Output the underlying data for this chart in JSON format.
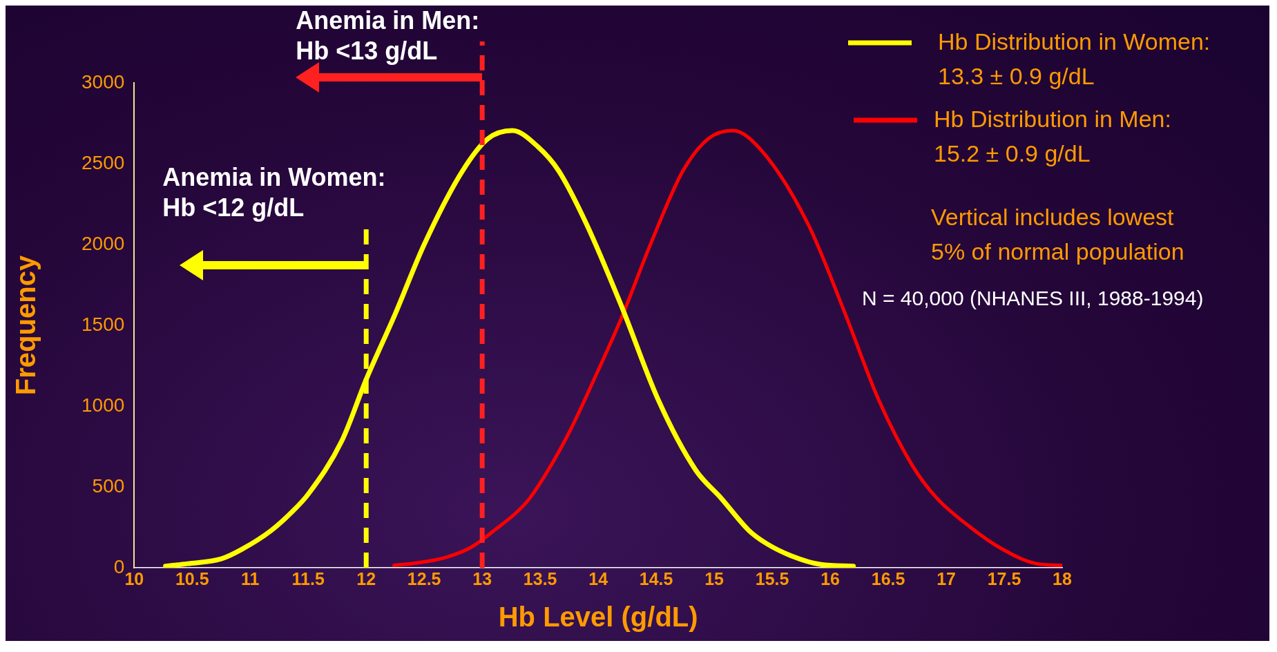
{
  "chart_data": {
    "type": "line",
    "xlabel": "Hb Level (g/dL)",
    "ylabel": "Frequency",
    "x": [
      10.27,
      10.46,
      10.75,
      10.93,
      11.18,
      11.36,
      11.5,
      11.79,
      12.0,
      12.25,
      12.5,
      12.83,
      13.05,
      13.26,
      13.48,
      13.66,
      13.9,
      14.2,
      14.52,
      14.84,
      15.06,
      15.3,
      15.45,
      15.66,
      15.92,
      16.2
    ],
    "series": [
      {
        "name": "Hb Distribution in Women:\n13.3 ± 0.9 g/dL",
        "color": "#ffff00",
        "values": [
          10,
          25,
          55,
          115,
          230,
          345,
          455,
          785,
          1165,
          1570,
          2000,
          2455,
          2655,
          2705,
          2605,
          2455,
          2125,
          1620,
          1035,
          605,
          430,
          230,
          150,
          75,
          20,
          10
        ]
      },
      {
        "name": "Hb Distribution in Men:\n15.2 ± 0.9 g/dL",
        "color": "#ff0000",
        "x": [
          12.24,
          12.44,
          12.69,
          12.9,
          13.12,
          13.3,
          13.41,
          13.73,
          13.98,
          14.2,
          14.45,
          14.73,
          14.95,
          15.16,
          15.41,
          15.81,
          16.13,
          16.42,
          16.71,
          16.92,
          17.21,
          17.46,
          17.78,
          18.0
        ],
        "values": [
          15,
          30,
          65,
          125,
          240,
          345,
          430,
          810,
          1190,
          1545,
          2000,
          2455,
          2655,
          2705,
          2580,
          2125,
          1570,
          1035,
          630,
          430,
          250,
          125,
          25,
          15
        ]
      }
    ],
    "xlim": [
      10,
      18
    ],
    "xticks": [
      10,
      10.5,
      11,
      11.5,
      12,
      12.5,
      13,
      13.5,
      14,
      14.5,
      15,
      15.5,
      16,
      16.5,
      17,
      17.5,
      18
    ],
    "ylim": [
      0,
      3000
    ],
    "yticks": [
      0,
      500,
      1000,
      1500,
      2000,
      2500,
      3000
    ],
    "ref_lines": [
      {
        "axis": "x",
        "value": 12,
        "label": "Anemia in Women:\nHb <12 g/dL",
        "color": "#ffff00",
        "line_style": "dashed"
      },
      {
        "axis": "x",
        "value": 13,
        "label": "Anemia in Men:\nHb <13 g/dL",
        "color": "#ff2020",
        "line_style": "dashed"
      }
    ],
    "annotations": [
      "Vertical includes lowest\n5% of normal population",
      "N = 40,000 (NHANES III, 1988-1994)"
    ],
    "legend": "top right",
    "grid": false,
    "marker": "none",
    "line_style": "solid"
  }
}
